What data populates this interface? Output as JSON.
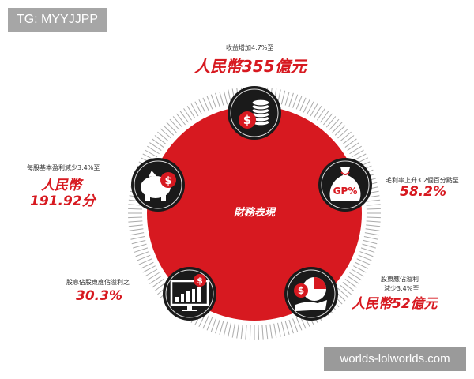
{
  "header": {
    "tag_label": "TG: MYYJJPP"
  },
  "watermark": "worlds-lolworlds.com",
  "infographic": {
    "center_title": "財務表現",
    "colors": {
      "accent": "#d71920",
      "icon_bg": "#1a1a1a"
    },
    "items": [
      {
        "icon": "coins-dollar-icon",
        "caption": "收益增加4.7%至",
        "value": "人民幣355億元"
      },
      {
        "icon": "money-bag-gp-icon",
        "caption": "毛利率上升3.2個百分點至",
        "value": "58.2%",
        "icon_text": "GP%"
      },
      {
        "icon": "hand-pie-chart-icon",
        "caption": "股東應佔溢利",
        "caption2": "減少3.4%至",
        "value": "人民幣52億元"
      },
      {
        "icon": "monitor-chart-icon",
        "caption": "股息佔股東應佔溢利之",
        "value": "30.3%"
      },
      {
        "icon": "piggy-bank-icon",
        "caption": "每股基本盈利減少3.4%至",
        "value": "人民幣",
        "value2": "191.92分"
      }
    ]
  }
}
